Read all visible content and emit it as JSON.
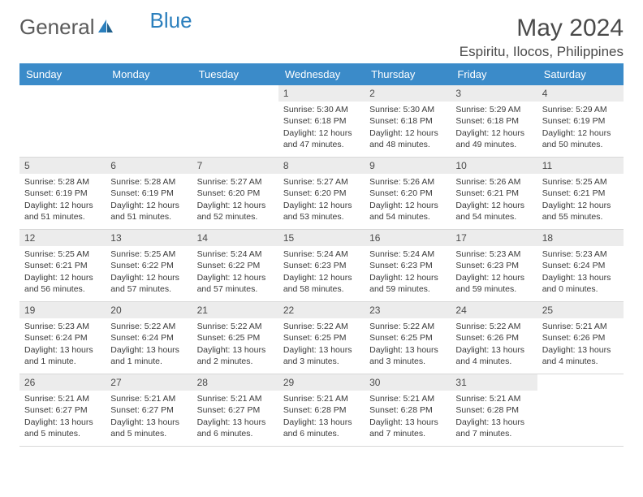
{
  "brand": {
    "part1": "General",
    "part2": "Blue"
  },
  "title": "May 2024",
  "location": "Espiritu, Ilocos, Philippines",
  "colors": {
    "header_bg": "#3b8bc9",
    "header_text": "#ffffff",
    "daynum_bg": "#ececec",
    "text": "#3a3a3a",
    "brand_gray": "#5a5a5a",
    "brand_blue": "#2b7fbd"
  },
  "weekdays": [
    "Sunday",
    "Monday",
    "Tuesday",
    "Wednesday",
    "Thursday",
    "Friday",
    "Saturday"
  ],
  "weeks": [
    [
      {
        "day": "",
        "lines": []
      },
      {
        "day": "",
        "lines": []
      },
      {
        "day": "",
        "lines": []
      },
      {
        "day": "1",
        "lines": [
          "Sunrise: 5:30 AM",
          "Sunset: 6:18 PM",
          "Daylight: 12 hours",
          "and 47 minutes."
        ]
      },
      {
        "day": "2",
        "lines": [
          "Sunrise: 5:30 AM",
          "Sunset: 6:18 PM",
          "Daylight: 12 hours",
          "and 48 minutes."
        ]
      },
      {
        "day": "3",
        "lines": [
          "Sunrise: 5:29 AM",
          "Sunset: 6:18 PM",
          "Daylight: 12 hours",
          "and 49 minutes."
        ]
      },
      {
        "day": "4",
        "lines": [
          "Sunrise: 5:29 AM",
          "Sunset: 6:19 PM",
          "Daylight: 12 hours",
          "and 50 minutes."
        ]
      }
    ],
    [
      {
        "day": "5",
        "lines": [
          "Sunrise: 5:28 AM",
          "Sunset: 6:19 PM",
          "Daylight: 12 hours",
          "and 51 minutes."
        ]
      },
      {
        "day": "6",
        "lines": [
          "Sunrise: 5:28 AM",
          "Sunset: 6:19 PM",
          "Daylight: 12 hours",
          "and 51 minutes."
        ]
      },
      {
        "day": "7",
        "lines": [
          "Sunrise: 5:27 AM",
          "Sunset: 6:20 PM",
          "Daylight: 12 hours",
          "and 52 minutes."
        ]
      },
      {
        "day": "8",
        "lines": [
          "Sunrise: 5:27 AM",
          "Sunset: 6:20 PM",
          "Daylight: 12 hours",
          "and 53 minutes."
        ]
      },
      {
        "day": "9",
        "lines": [
          "Sunrise: 5:26 AM",
          "Sunset: 6:20 PM",
          "Daylight: 12 hours",
          "and 54 minutes."
        ]
      },
      {
        "day": "10",
        "lines": [
          "Sunrise: 5:26 AM",
          "Sunset: 6:21 PM",
          "Daylight: 12 hours",
          "and 54 minutes."
        ]
      },
      {
        "day": "11",
        "lines": [
          "Sunrise: 5:25 AM",
          "Sunset: 6:21 PM",
          "Daylight: 12 hours",
          "and 55 minutes."
        ]
      }
    ],
    [
      {
        "day": "12",
        "lines": [
          "Sunrise: 5:25 AM",
          "Sunset: 6:21 PM",
          "Daylight: 12 hours",
          "and 56 minutes."
        ]
      },
      {
        "day": "13",
        "lines": [
          "Sunrise: 5:25 AM",
          "Sunset: 6:22 PM",
          "Daylight: 12 hours",
          "and 57 minutes."
        ]
      },
      {
        "day": "14",
        "lines": [
          "Sunrise: 5:24 AM",
          "Sunset: 6:22 PM",
          "Daylight: 12 hours",
          "and 57 minutes."
        ]
      },
      {
        "day": "15",
        "lines": [
          "Sunrise: 5:24 AM",
          "Sunset: 6:23 PM",
          "Daylight: 12 hours",
          "and 58 minutes."
        ]
      },
      {
        "day": "16",
        "lines": [
          "Sunrise: 5:24 AM",
          "Sunset: 6:23 PM",
          "Daylight: 12 hours",
          "and 59 minutes."
        ]
      },
      {
        "day": "17",
        "lines": [
          "Sunrise: 5:23 AM",
          "Sunset: 6:23 PM",
          "Daylight: 12 hours",
          "and 59 minutes."
        ]
      },
      {
        "day": "18",
        "lines": [
          "Sunrise: 5:23 AM",
          "Sunset: 6:24 PM",
          "Daylight: 13 hours",
          "and 0 minutes."
        ]
      }
    ],
    [
      {
        "day": "19",
        "lines": [
          "Sunrise: 5:23 AM",
          "Sunset: 6:24 PM",
          "Daylight: 13 hours",
          "and 1 minute."
        ]
      },
      {
        "day": "20",
        "lines": [
          "Sunrise: 5:22 AM",
          "Sunset: 6:24 PM",
          "Daylight: 13 hours",
          "and 1 minute."
        ]
      },
      {
        "day": "21",
        "lines": [
          "Sunrise: 5:22 AM",
          "Sunset: 6:25 PM",
          "Daylight: 13 hours",
          "and 2 minutes."
        ]
      },
      {
        "day": "22",
        "lines": [
          "Sunrise: 5:22 AM",
          "Sunset: 6:25 PM",
          "Daylight: 13 hours",
          "and 3 minutes."
        ]
      },
      {
        "day": "23",
        "lines": [
          "Sunrise: 5:22 AM",
          "Sunset: 6:25 PM",
          "Daylight: 13 hours",
          "and 3 minutes."
        ]
      },
      {
        "day": "24",
        "lines": [
          "Sunrise: 5:22 AM",
          "Sunset: 6:26 PM",
          "Daylight: 13 hours",
          "and 4 minutes."
        ]
      },
      {
        "day": "25",
        "lines": [
          "Sunrise: 5:21 AM",
          "Sunset: 6:26 PM",
          "Daylight: 13 hours",
          "and 4 minutes."
        ]
      }
    ],
    [
      {
        "day": "26",
        "lines": [
          "Sunrise: 5:21 AM",
          "Sunset: 6:27 PM",
          "Daylight: 13 hours",
          "and 5 minutes."
        ]
      },
      {
        "day": "27",
        "lines": [
          "Sunrise: 5:21 AM",
          "Sunset: 6:27 PM",
          "Daylight: 13 hours",
          "and 5 minutes."
        ]
      },
      {
        "day": "28",
        "lines": [
          "Sunrise: 5:21 AM",
          "Sunset: 6:27 PM",
          "Daylight: 13 hours",
          "and 6 minutes."
        ]
      },
      {
        "day": "29",
        "lines": [
          "Sunrise: 5:21 AM",
          "Sunset: 6:28 PM",
          "Daylight: 13 hours",
          "and 6 minutes."
        ]
      },
      {
        "day": "30",
        "lines": [
          "Sunrise: 5:21 AM",
          "Sunset: 6:28 PM",
          "Daylight: 13 hours",
          "and 7 minutes."
        ]
      },
      {
        "day": "31",
        "lines": [
          "Sunrise: 5:21 AM",
          "Sunset: 6:28 PM",
          "Daylight: 13 hours",
          "and 7 minutes."
        ]
      },
      {
        "day": "",
        "lines": []
      }
    ]
  ]
}
